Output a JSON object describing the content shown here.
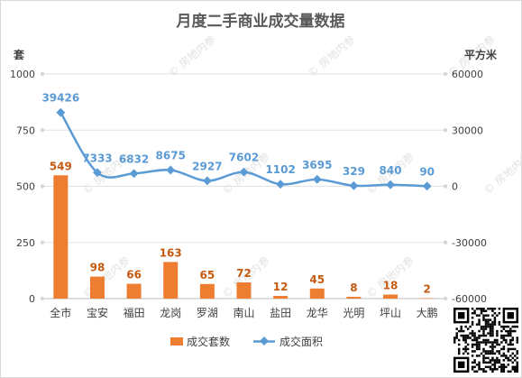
{
  "chart_data": {
    "type": "bar",
    "title": "月度二手商业成交量数据",
    "left_unit": "套",
    "right_unit": "平方米",
    "categories": [
      "全市",
      "宝安",
      "福田",
      "龙岗",
      "罗湖",
      "南山",
      "盐田",
      "龙华",
      "光明",
      "坪山",
      "大鹏"
    ],
    "left_axis": {
      "ylim": [
        0,
        1000
      ],
      "ticks": [
        0,
        250,
        500,
        750,
        1000
      ]
    },
    "right_axis": {
      "ylim": [
        -60000,
        60000
      ],
      "ticks": [
        -60000,
        -30000,
        0,
        30000,
        60000
      ]
    },
    "grid": true,
    "legend_position": "bottom",
    "series": [
      {
        "name": "成交套数",
        "type": "bar",
        "axis": "left",
        "color": "#ed7d31",
        "values": [
          549,
          98,
          66,
          163,
          65,
          72,
          12,
          45,
          8,
          18,
          2
        ],
        "labels": [
          "549",
          "98",
          "66",
          "163",
          "65",
          "72",
          "12",
          "45",
          "8",
          "18",
          "2"
        ]
      },
      {
        "name": "成交面积",
        "type": "line",
        "axis": "right",
        "color": "#5b9bd5",
        "values": [
          39426,
          7333,
          6832,
          8675,
          2927,
          7602,
          1102,
          3695,
          329,
          840,
          90
        ],
        "labels": [
          "39426",
          "7333",
          "6832",
          "8675",
          "2927",
          "7602",
          "1102",
          "3695",
          "329",
          "840",
          "90"
        ]
      }
    ]
  },
  "watermark": "房地内参"
}
